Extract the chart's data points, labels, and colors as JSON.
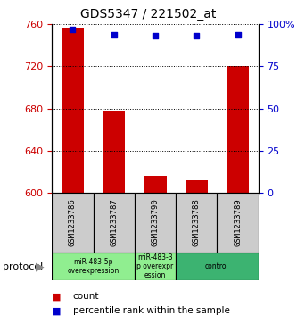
{
  "title": "GDS5347 / 221502_at",
  "samples": [
    "GSM1233786",
    "GSM1233787",
    "GSM1233790",
    "GSM1233788",
    "GSM1233789"
  ],
  "bar_values": [
    757,
    678,
    616,
    612,
    720
  ],
  "percentile_values": [
    97,
    94,
    93,
    93,
    94
  ],
  "ylim_left": [
    600,
    760
  ],
  "ylim_right": [
    0,
    100
  ],
  "yticks_left": [
    600,
    640,
    680,
    720,
    760
  ],
  "yticks_right": [
    0,
    25,
    50,
    75,
    100
  ],
  "bar_color": "#cc0000",
  "percentile_color": "#0000cc",
  "bar_width": 0.55,
  "background_color": "#ffffff",
  "tick_color_left": "#cc0000",
  "tick_color_right": "#0000cc",
  "legend_count_label": "count",
  "legend_percentile_label": "percentile rank within the sample",
  "protocol_label": "protocol",
  "gray_box_color": "#cccccc",
  "green_light_color": "#90EE90",
  "green_dark_color": "#3CB371",
  "groups": [
    {
      "idx": [
        0,
        1
      ],
      "label": "miR-483-5p\noverexpression",
      "color": "#90EE90"
    },
    {
      "idx": [
        2
      ],
      "label": "miR-483-3\np overexpr\nession",
      "color": "#90EE90"
    },
    {
      "idx": [
        3,
        4
      ],
      "label": "control",
      "color": "#3CB371"
    }
  ]
}
